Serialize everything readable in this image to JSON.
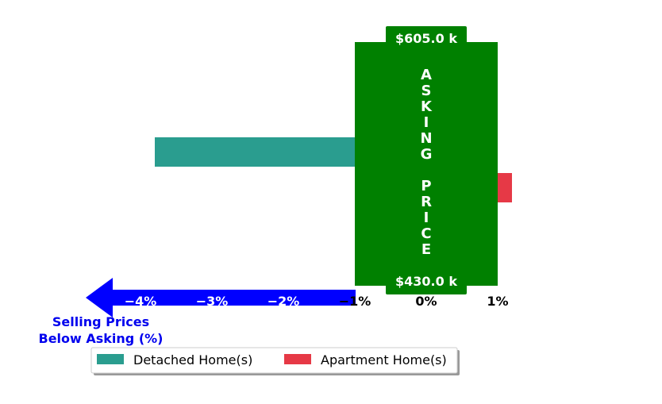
{
  "chart_data": {
    "type": "bar",
    "orientation": "horizontal",
    "series": [
      {
        "name": "Detached Home(s)",
        "value": -3.8,
        "color": "#2a9d8f"
      },
      {
        "name": "Apartment Home(s)",
        "value": 1.2,
        "color": "#e63946"
      }
    ],
    "xlim": [
      -4.5,
      1.3
    ],
    "x_ticks": [
      {
        "value": -4,
        "label": "−4%"
      },
      {
        "value": -3,
        "label": "−3%"
      },
      {
        "value": -2,
        "label": "−2%"
      },
      {
        "value": -1,
        "label": "−1%"
      },
      {
        "value": 0,
        "label": "0%"
      },
      {
        "value": 1,
        "label": "1%"
      }
    ],
    "x_axis_title": [
      "Selling Prices",
      "Below Asking (%)"
    ],
    "asking_price": {
      "label": "ASKING PRICE",
      "range": [
        -1,
        1
      ],
      "top_label": "$605.0 k",
      "bottom_label": "$430.0 k",
      "color": "#008000"
    },
    "arrow_color": "#0000ff",
    "axis_title_color": "#0000ee",
    "legend_position": "bottom-left"
  }
}
